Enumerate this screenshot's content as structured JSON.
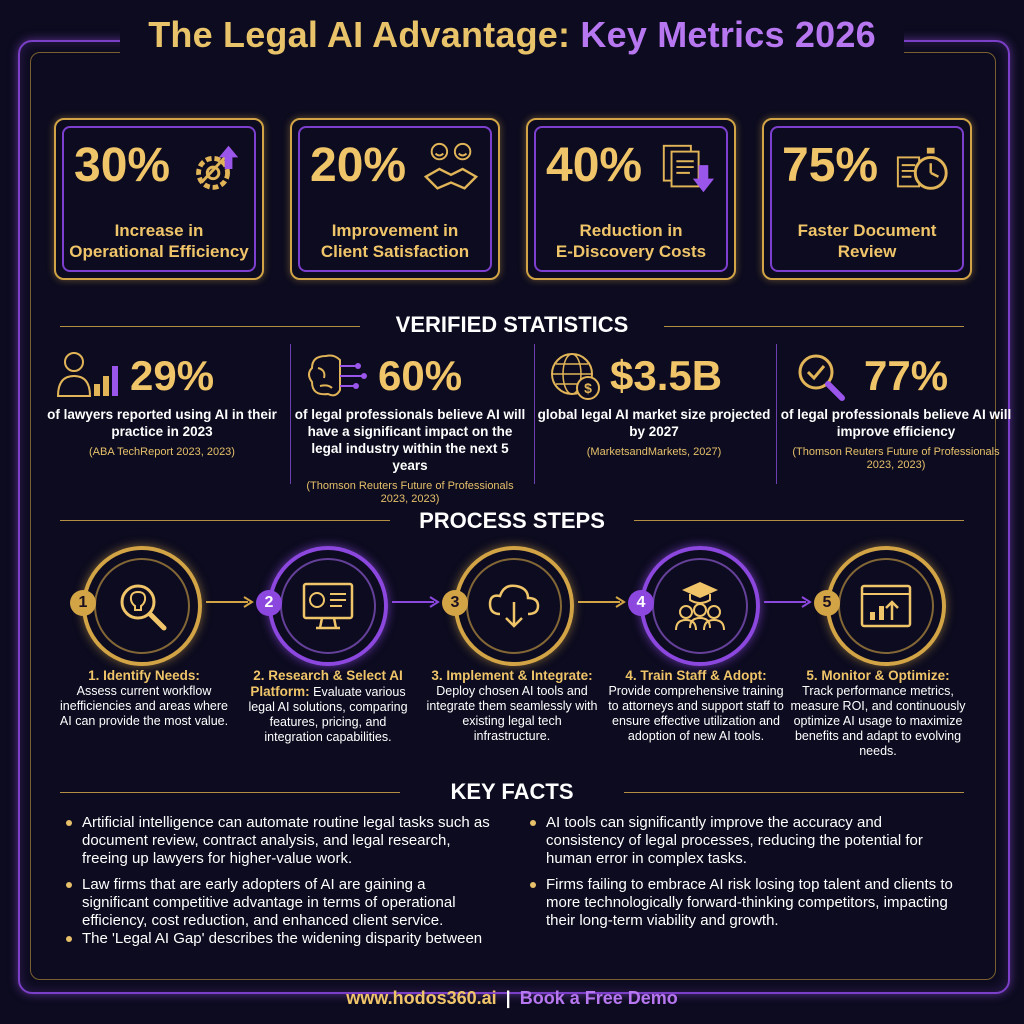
{
  "header": {
    "title_part1": "The Legal AI Advantage:",
    "title_part2": "Key Metrics 2026"
  },
  "colors": {
    "gold": "#f0c569",
    "purple": "#8c47df",
    "background": "#0c0b1f"
  },
  "metrics": [
    {
      "value": "30%",
      "label_line1": "Increase in",
      "label_line2": "Operational Efficiency",
      "icon": "gear-arrow-icon"
    },
    {
      "value": "20%",
      "label_line1": "Improvement in",
      "label_line2": "Client Satisfaction",
      "icon": "handshake-smiles-icon"
    },
    {
      "value": "40%",
      "label_line1": "Reduction in",
      "label_line2": "E-Discovery Costs",
      "icon": "documents-down-arrow-icon"
    },
    {
      "value": "75%",
      "label_line1": "Faster Document",
      "label_line2": "Review",
      "icon": "document-stopwatch-icon"
    }
  ],
  "verified": {
    "title": "VERIFIED STATISTICS",
    "items": [
      {
        "value": "29%",
        "desc": "of lawyers reported using AI in their practice in 2023",
        "source": "(ABA TechReport 2023, 2023)",
        "icon": "lawyer-bar-chart-icon"
      },
      {
        "value": "60%",
        "desc": "of legal professionals believe AI will have a significant impact on the legal industry within the next 5 years",
        "source": "(Thomson Reuters Future of Professionals 2023, 2023)",
        "icon": "brain-circuit-icon"
      },
      {
        "value": "$3.5B",
        "desc": "global legal AI market size projected by 2027",
        "source": "(MarketsandMarkets, 2027)",
        "icon": "globe-dollar-icon"
      },
      {
        "value": "77%",
        "desc": "of legal professionals believe AI will improve efficiency",
        "source": "(Thomson Reuters Future of Professionals 2023, 2023)",
        "icon": "magnifier-check-icon"
      }
    ]
  },
  "process": {
    "title": "PROCESS STEPS",
    "steps": [
      {
        "num": "1",
        "heading": "1. Identify Needs:",
        "text": "Assess current workflow inefficiencies and areas where AI can provide the most value.",
        "icon": "lightbulb-magnifier-icon"
      },
      {
        "num": "2",
        "heading": "2. Research & Select AI Platform:",
        "text": "Evaluate various legal AI solutions, comparing features, pricing, and integration capabilities.",
        "icon": "monitor-dashboard-icon"
      },
      {
        "num": "3",
        "heading": "3. Implement & Integrate:",
        "text": "Deploy chosen AI tools and integrate them seamlessly with existing legal tech infrastructure.",
        "icon": "cloud-download-icon"
      },
      {
        "num": "4",
        "heading": "4. Train Staff & Adopt:",
        "text": "Provide comprehensive training to attorneys and support staff to ensure effective utilization and adoption of new AI tools.",
        "icon": "graduation-team-icon"
      },
      {
        "num": "5",
        "heading": "5. Monitor & Optimize:",
        "text": "Track performance metrics, measure ROI, and continuously optimize AI usage to maximize benefits and adapt to evolving needs.",
        "icon": "browser-chart-icon"
      }
    ]
  },
  "facts": {
    "title": "KEY FACTS",
    "items": [
      "Artificial intelligence can automate routine legal tasks such as document review, contract analysis, and legal research, freeing up lawyers for higher-value work.",
      "AI tools can significantly improve the accuracy and consistency of legal processes, reducing the potential for human error in complex tasks.",
      "Law firms that are early adopters of AI are gaining a significant competitive advantage in terms of operational efficiency, cost reduction, and enhanced client service.",
      "Firms failing to embrace AI risk losing top talent and clients to more technologically forward-thinking competitors, impacting their long-term viability and growth.",
      "The 'Legal AI Gap' describes the widening disparity between"
    ]
  },
  "footer": {
    "link": "www.hodos360.ai",
    "separator": "|",
    "cta": "Book a Free Demo"
  }
}
